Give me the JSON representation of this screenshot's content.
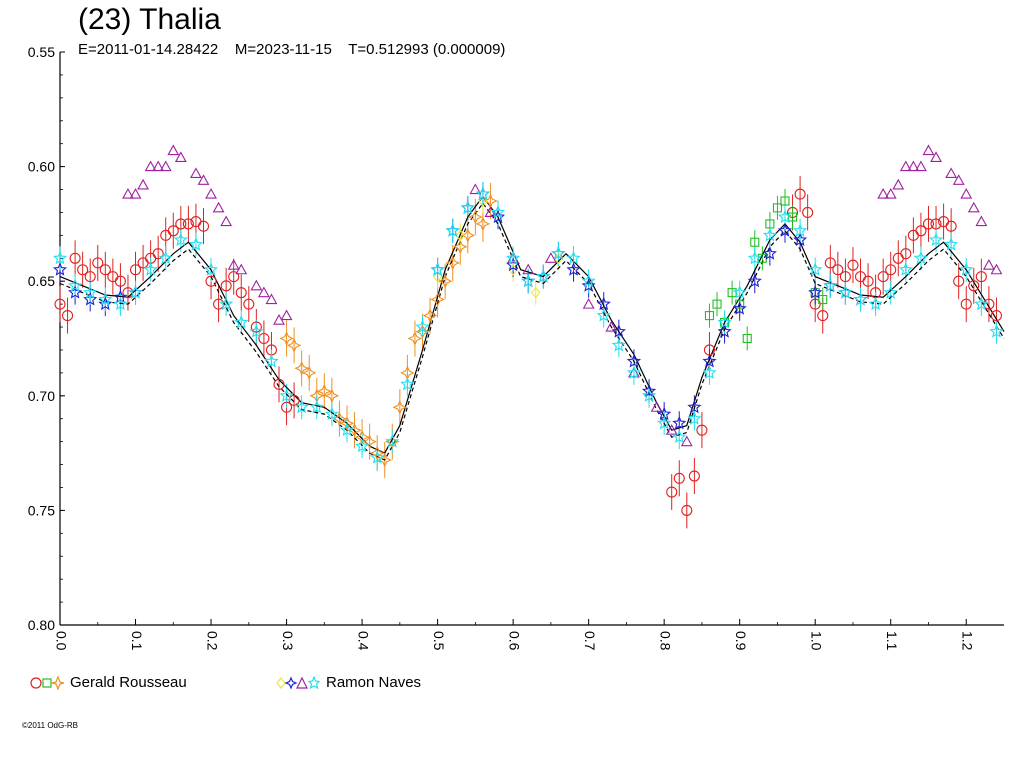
{
  "header": {
    "title": "(23) Thalia",
    "subtitle": "E=2011-01-14.28422    M=2023-11-15    T=0.512993 (0.000009)"
  },
  "legend": [
    {
      "name": "Gerald Rousseau",
      "markers": [
        "circle",
        "square",
        "diamond-star"
      ],
      "colors": [
        "#e02020",
        "#20c020",
        "#f09020"
      ]
    },
    {
      "name": "Ramon Naves",
      "markers": [
        "diamond",
        "star",
        "triangle",
        "star"
      ],
      "colors": [
        "#e8e840",
        "#2020d0",
        "#a020a0",
        "#20e0f0"
      ]
    }
  ],
  "footer": {
    "copyright": "©2011 OdG-RB"
  },
  "colors": {
    "red": "#e02020",
    "green": "#20c020",
    "orange": "#f09020",
    "yellow": "#e8e840",
    "blue": "#2020d0",
    "purple": "#a020a0",
    "cyan": "#20e0f0",
    "fit": "#000000"
  },
  "chart_data": {
    "type": "scatter",
    "title": "(23) Thalia",
    "xlabel": "",
    "ylabel": "",
    "xlim": [
      0.0,
      1.25
    ],
    "ylim": [
      0.8,
      0.55
    ],
    "y_inverted": true,
    "x_ticks": [
      "0.0",
      "0.1",
      "0.2",
      "0.3",
      "0.4",
      "0.5",
      "0.6",
      "0.7",
      "0.8",
      "0.9",
      "1.0",
      "1.1",
      "1.2"
    ],
    "y_ticks": [
      "0.55",
      "0.60",
      "0.65",
      "0.70",
      "0.75",
      "0.80"
    ],
    "fit_curve": {
      "x": [
        0.0,
        0.03,
        0.06,
        0.09,
        0.12,
        0.15,
        0.17,
        0.2,
        0.23,
        0.26,
        0.29,
        0.32,
        0.35,
        0.38,
        0.41,
        0.43,
        0.45,
        0.48,
        0.51,
        0.54,
        0.56,
        0.58,
        0.61,
        0.64,
        0.67,
        0.7,
        0.73,
        0.76,
        0.79,
        0.81,
        0.83,
        0.85,
        0.88,
        0.91,
        0.94,
        0.96,
        0.98,
        1.0,
        1.03,
        1.06,
        1.09,
        1.12,
        1.15,
        1.17,
        1.2,
        1.25
      ],
      "y": [
        0.648,
        0.652,
        0.656,
        0.657,
        0.648,
        0.638,
        0.633,
        0.645,
        0.665,
        0.678,
        0.693,
        0.703,
        0.705,
        0.712,
        0.722,
        0.725,
        0.713,
        0.68,
        0.645,
        0.622,
        0.613,
        0.622,
        0.645,
        0.648,
        0.638,
        0.648,
        0.667,
        0.682,
        0.703,
        0.715,
        0.713,
        0.692,
        0.668,
        0.652,
        0.632,
        0.625,
        0.633,
        0.648,
        0.652,
        0.656,
        0.657,
        0.648,
        0.638,
        0.633,
        0.645,
        0.672
      ]
    },
    "series": [
      {
        "name": "Gerald Rousseau",
        "marker": "circle",
        "color": "#e02020",
        "x": [
          0.0,
          0.01,
          0.02,
          0.03,
          0.04,
          0.05,
          0.06,
          0.07,
          0.08,
          0.09,
          0.1,
          0.11,
          0.12,
          0.13,
          0.14,
          0.15,
          0.16,
          0.17,
          0.18,
          0.19,
          0.2,
          0.21,
          0.22,
          0.23,
          0.24,
          0.25,
          0.26,
          0.27,
          0.28,
          0.29,
          0.3,
          0.31,
          0.81,
          0.82,
          0.83,
          0.84,
          0.85,
          0.86,
          0.97,
          0.98,
          0.99,
          1.0,
          1.01,
          1.02,
          1.03,
          1.04,
          1.05,
          1.06,
          1.07,
          1.08,
          1.09,
          1.1,
          1.11,
          1.12,
          1.13,
          1.14,
          1.15,
          1.16,
          1.17,
          1.18,
          1.19,
          1.2,
          1.21,
          1.22,
          1.23,
          1.24
        ],
        "y": [
          0.66,
          0.665,
          0.64,
          0.645,
          0.648,
          0.642,
          0.645,
          0.648,
          0.65,
          0.655,
          0.645,
          0.642,
          0.64,
          0.638,
          0.63,
          0.628,
          0.625,
          0.625,
          0.624,
          0.626,
          0.65,
          0.66,
          0.652,
          0.648,
          0.655,
          0.66,
          0.67,
          0.675,
          0.68,
          0.695,
          0.705,
          0.702,
          0.742,
          0.736,
          0.75,
          0.735,
          0.715,
          0.68,
          0.62,
          0.612,
          0.62,
          0.66,
          0.665,
          0.642,
          0.645,
          0.648,
          0.643,
          0.648,
          0.65,
          0.655,
          0.648,
          0.645,
          0.64,
          0.638,
          0.63,
          0.628,
          0.625,
          0.625,
          0.624,
          0.626,
          0.65,
          0.66,
          0.652,
          0.648,
          0.66,
          0.665
        ]
      },
      {
        "name": "Gerald Rousseau",
        "marker": "square",
        "color": "#20c020",
        "x": [
          0.86,
          0.87,
          0.88,
          0.89,
          0.9,
          0.91,
          0.92,
          0.93,
          0.94,
          0.95,
          0.96,
          0.97,
          1.0,
          1.01
        ],
        "y": [
          0.665,
          0.66,
          0.668,
          0.655,
          0.66,
          0.675,
          0.633,
          0.64,
          0.625,
          0.618,
          0.615,
          0.622,
          0.655,
          0.658
        ]
      },
      {
        "name": "Gerald Rousseau",
        "marker": "diamond-star",
        "color": "#f09020",
        "x": [
          0.3,
          0.31,
          0.32,
          0.33,
          0.34,
          0.35,
          0.36,
          0.37,
          0.38,
          0.39,
          0.4,
          0.41,
          0.42,
          0.43,
          0.44,
          0.45,
          0.46,
          0.47,
          0.48,
          0.49,
          0.5,
          0.51,
          0.52,
          0.53,
          0.54,
          0.55,
          0.56,
          0.57
        ],
        "y": [
          0.675,
          0.678,
          0.688,
          0.69,
          0.7,
          0.698,
          0.7,
          0.71,
          0.712,
          0.715,
          0.718,
          0.72,
          0.725,
          0.728,
          0.72,
          0.705,
          0.69,
          0.675,
          0.672,
          0.665,
          0.658,
          0.65,
          0.642,
          0.635,
          0.63,
          0.622,
          0.625,
          0.615
        ]
      },
      {
        "name": "Ramon Naves",
        "marker": "diamond",
        "color": "#e8e840",
        "x": [
          0.5,
          0.53,
          0.56,
          0.6,
          0.63,
          0.66
        ],
        "y": [
          0.648,
          0.63,
          0.615,
          0.645,
          0.655,
          0.64
        ]
      },
      {
        "name": "Ramon Naves",
        "marker": "star",
        "color": "#2020d0",
        "x": [
          0.0,
          0.02,
          0.04,
          0.06,
          0.08,
          0.1,
          0.5,
          0.52,
          0.54,
          0.56,
          0.58,
          0.6,
          0.62,
          0.64,
          0.66,
          0.68,
          0.7,
          0.72,
          0.74,
          0.76,
          0.78,
          0.8,
          0.82,
          0.84,
          0.86,
          0.88,
          0.9,
          0.92,
          0.94,
          0.96,
          0.98,
          1.0,
          1.02,
          1.04,
          1.06
        ],
        "y": [
          0.645,
          0.655,
          0.658,
          0.66,
          0.657,
          0.655,
          0.645,
          0.628,
          0.618,
          0.612,
          0.622,
          0.643,
          0.65,
          0.648,
          0.638,
          0.645,
          0.652,
          0.66,
          0.672,
          0.685,
          0.698,
          0.708,
          0.712,
          0.705,
          0.685,
          0.672,
          0.662,
          0.65,
          0.638,
          0.628,
          0.632,
          0.655,
          0.652,
          0.655,
          0.658
        ]
      },
      {
        "name": "Ramon Naves",
        "marker": "triangle",
        "color": "#a020a0",
        "x": [
          0.09,
          0.1,
          0.11,
          0.12,
          0.13,
          0.14,
          0.15,
          0.16,
          0.18,
          0.19,
          0.2,
          0.21,
          0.22,
          0.23,
          0.24,
          0.26,
          0.27,
          0.28,
          0.29,
          0.3,
          0.55,
          0.57,
          0.6,
          0.62,
          0.65,
          0.7,
          0.73,
          0.76,
          0.79,
          0.81,
          0.83,
          1.09,
          1.1,
          1.11,
          1.12,
          1.13,
          1.14,
          1.15,
          1.16,
          1.18,
          1.19,
          1.2,
          1.21,
          1.22,
          1.23,
          1.24
        ],
        "y": [
          0.612,
          0.612,
          0.608,
          0.6,
          0.6,
          0.6,
          0.593,
          0.596,
          0.603,
          0.606,
          0.612,
          0.618,
          0.624,
          0.643,
          0.645,
          0.652,
          0.655,
          0.658,
          0.667,
          0.665,
          0.61,
          0.62,
          0.64,
          0.645,
          0.64,
          0.66,
          0.67,
          0.69,
          0.705,
          0.715,
          0.72,
          0.612,
          0.612,
          0.608,
          0.6,
          0.6,
          0.6,
          0.593,
          0.596,
          0.603,
          0.606,
          0.612,
          0.618,
          0.624,
          0.643,
          0.645
        ]
      },
      {
        "name": "Ramon Naves",
        "marker": "star",
        "color": "#20e0f0",
        "x": [
          0.0,
          0.02,
          0.04,
          0.06,
          0.08,
          0.1,
          0.12,
          0.14,
          0.16,
          0.18,
          0.2,
          0.22,
          0.24,
          0.26,
          0.28,
          0.3,
          0.32,
          0.34,
          0.36,
          0.38,
          0.4,
          0.42,
          0.44,
          0.46,
          0.48,
          0.5,
          0.52,
          0.54,
          0.56,
          0.58,
          0.6,
          0.62,
          0.64,
          0.66,
          0.68,
          0.7,
          0.72,
          0.74,
          0.76,
          0.78,
          0.8,
          0.82,
          0.84,
          0.86,
          0.88,
          0.9,
          0.92,
          0.94,
          0.96,
          0.98,
          1.0,
          1.02,
          1.04,
          1.06,
          1.08,
          1.1,
          1.12,
          1.14,
          1.16,
          1.18,
          1.2,
          1.22,
          1.24
        ],
        "y": [
          0.64,
          0.652,
          0.655,
          0.658,
          0.66,
          0.655,
          0.645,
          0.64,
          0.632,
          0.634,
          0.645,
          0.66,
          0.668,
          0.672,
          0.685,
          0.7,
          0.705,
          0.705,
          0.708,
          0.715,
          0.722,
          0.727,
          0.72,
          0.695,
          0.67,
          0.645,
          0.628,
          0.618,
          0.612,
          0.62,
          0.64,
          0.65,
          0.648,
          0.638,
          0.64,
          0.65,
          0.665,
          0.678,
          0.69,
          0.7,
          0.712,
          0.718,
          0.71,
          0.69,
          0.668,
          0.655,
          0.64,
          0.63,
          0.622,
          0.628,
          0.645,
          0.652,
          0.655,
          0.658,
          0.66,
          0.655,
          0.645,
          0.64,
          0.632,
          0.634,
          0.645,
          0.66,
          0.672
        ]
      }
    ]
  }
}
